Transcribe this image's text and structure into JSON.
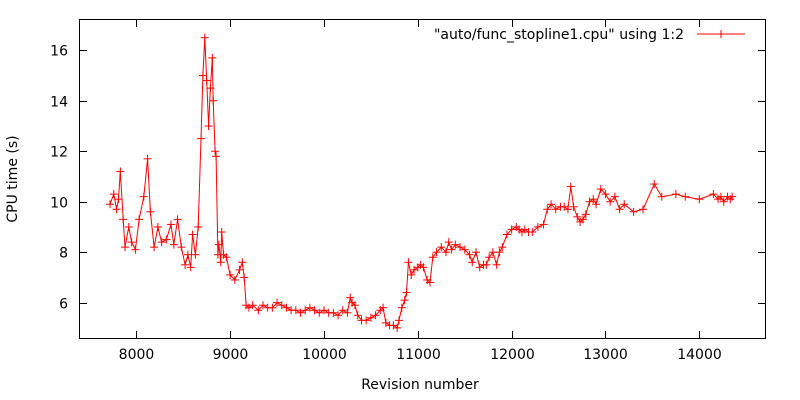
{
  "chart_data": {
    "type": "line",
    "title": "",
    "xlabel": "Revision number",
    "ylabel": "CPU time (s)",
    "xlim": [
      7400,
      14700
    ],
    "ylim": [
      4.6,
      17.2
    ],
    "xticks": [
      8000,
      9000,
      10000,
      11000,
      12000,
      13000,
      14000
    ],
    "yticks": [
      6,
      8,
      10,
      12,
      14,
      16
    ],
    "grid": false,
    "legend_position": "top-right",
    "series_color": "#ff0000",
    "series": [
      {
        "name": "\"auto/func_stopline1.cpu\" using 1:2",
        "marker": "plus",
        "x": [
          7720,
          7760,
          7790,
          7810,
          7830,
          7860,
          7880,
          7920,
          7950,
          7990,
          8030,
          8080,
          8120,
          8150,
          8190,
          8230,
          8270,
          8320,
          8370,
          8400,
          8440,
          8480,
          8520,
          8550,
          8580,
          8600,
          8630,
          8660,
          8690,
          8710,
          8730,
          8750,
          8770,
          8790,
          8810,
          8820,
          8840,
          8850,
          8870,
          8880,
          8900,
          8910,
          8930,
          8960,
          9000,
          9050,
          9100,
          9130,
          9150,
          9170,
          9200,
          9240,
          9300,
          9350,
          9400,
          9450,
          9500,
          9550,
          9600,
          9650,
          9700,
          9750,
          9800,
          9850,
          9900,
          9950,
          10000,
          10050,
          10100,
          10150,
          10200,
          10250,
          10280,
          10300,
          10330,
          10360,
          10400,
          10450,
          10500,
          10550,
          10600,
          10630,
          10660,
          10700,
          10740,
          10780,
          10800,
          10830,
          10860,
          10880,
          10900,
          10930,
          10960,
          11000,
          11030,
          11060,
          11100,
          11130,
          11160,
          11200,
          11250,
          11300,
          11330,
          11360,
          11400,
          11450,
          11500,
          11550,
          11580,
          11620,
          11660,
          11700,
          11730,
          11760,
          11800,
          11840,
          11870,
          11900,
          11950,
          12000,
          12050,
          12080,
          12110,
          12140,
          12180,
          12220,
          12280,
          12340,
          12380,
          12420,
          12470,
          12520,
          12560,
          12600,
          12630,
          12660,
          12700,
          12730,
          12760,
          12790,
          12830,
          12870,
          12900,
          12950,
          13000,
          13050,
          13100,
          13150,
          13200,
          13300,
          13400,
          13520,
          13600,
          13750,
          13850,
          14000,
          14150,
          14200,
          14230,
          14260,
          14300,
          14330,
          14350
        ],
        "y": [
          9.9,
          10.3,
          9.7,
          10.1,
          11.2,
          9.3,
          8.2,
          9.0,
          8.4,
          8.1,
          9.3,
          10.2,
          11.7,
          9.6,
          8.2,
          9.0,
          8.4,
          8.5,
          9.1,
          8.3,
          9.3,
          8.2,
          7.5,
          7.9,
          7.4,
          8.7,
          7.9,
          9.0,
          12.5,
          15.0,
          16.5,
          14.8,
          13.0,
          14.5,
          15.7,
          14.0,
          12.0,
          11.8,
          7.9,
          8.3,
          7.6,
          8.8,
          7.9,
          7.8,
          7.1,
          6.9,
          7.3,
          7.6,
          7.0,
          5.9,
          5.8,
          5.9,
          5.7,
          5.9,
          5.8,
          5.8,
          6.0,
          5.9,
          5.8,
          5.7,
          5.7,
          5.6,
          5.7,
          5.8,
          5.7,
          5.6,
          5.7,
          5.6,
          5.6,
          5.5,
          5.7,
          5.6,
          6.2,
          6.0,
          5.9,
          5.5,
          5.3,
          5.3,
          5.4,
          5.5,
          5.7,
          5.8,
          5.2,
          5.1,
          5.1,
          5.0,
          5.3,
          5.8,
          6.1,
          6.4,
          7.6,
          7.1,
          7.3,
          7.4,
          7.5,
          7.4,
          6.9,
          6.8,
          7.8,
          8.0,
          8.2,
          8.0,
          8.4,
          8.1,
          8.3,
          8.2,
          8.1,
          7.9,
          7.6,
          8.0,
          7.4,
          7.5,
          7.5,
          7.8,
          8.0,
          7.5,
          8.0,
          8.2,
          8.7,
          8.9,
          9.0,
          8.9,
          8.8,
          8.9,
          8.8,
          8.8,
          9.0,
          9.1,
          9.7,
          9.9,
          9.7,
          9.8,
          9.8,
          9.7,
          10.6,
          9.8,
          9.4,
          9.2,
          9.3,
          9.5,
          10.0,
          10.1,
          9.9,
          10.5,
          10.3,
          10.0,
          10.2,
          9.7,
          9.9,
          9.6,
          9.7,
          10.7,
          10.2,
          10.3,
          10.2,
          10.1,
          10.3,
          10.1,
          10.2,
          10.0,
          10.2,
          10.1,
          10.2
        ]
      }
    ]
  }
}
